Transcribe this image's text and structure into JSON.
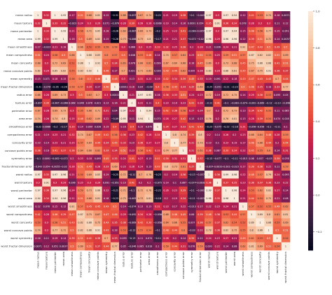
{
  "chart_data": {
    "type": "heatmap",
    "title": "",
    "xlabel": "",
    "ylabel": "",
    "labels": [
      "mean radius",
      "mean texture",
      "mean perimeter",
      "mean area",
      "mean smoothness",
      "mean compactness",
      "mean concavity",
      "mean concave points",
      "mean symmetry",
      "mean fractal dimension",
      "radius error",
      "texture error",
      "perimeter error",
      "area error",
      "smoothness error",
      "compactness error",
      "concavity error",
      "concave points error",
      "symmetry error",
      "fractal dimension error",
      "worst radius",
      "worst texture",
      "worst perimeter",
      "worst area",
      "worst smoothness",
      "worst compactness",
      "worst concavity",
      "worst concave points",
      "worst symmetry",
      "worst fractal dimension"
    ],
    "matrix": [
      [
        1,
        0.32,
        1,
        0.99,
        0.17,
        0.51,
        0.68,
        0.82,
        0.15,
        -0.31,
        0.68,
        -0.097,
        0.67,
        0.74,
        -0.22,
        0.21,
        0.19,
        0.38,
        -0.1,
        -0.043,
        0.97,
        0.3,
        0.97,
        0.94,
        0.12,
        0.41,
        0.53,
        0.74,
        0.16,
        0.0071
      ],
      [
        0.32,
        1,
        0.33,
        0.32,
        -0.023,
        0.24,
        0.3,
        0.29,
        0.071,
        -0.076,
        0.28,
        0.39,
        0.28,
        0.26,
        0.0066,
        0.19,
        0.14,
        0.16,
        0.0091,
        0.054,
        0.35,
        0.91,
        0.36,
        0.34,
        0.078,
        0.28,
        0.3,
        0.3,
        0.11,
        0.12
      ],
      [
        1,
        0.33,
        1,
        0.99,
        0.21,
        0.56,
        0.72,
        0.85,
        0.18,
        -0.26,
        0.69,
        -0.087,
        0.69,
        0.74,
        -0.2,
        0.25,
        0.23,
        0.41,
        -0.082,
        -0.0055,
        0.97,
        0.3,
        0.97,
        0.94,
        0.15,
        0.46,
        0.56,
        0.77,
        0.19,
        0.051
      ],
      [
        0.99,
        0.32,
        0.99,
        1,
        0.18,
        0.5,
        0.69,
        0.82,
        0.15,
        -0.28,
        0.73,
        -0.066,
        0.73,
        0.8,
        -0.17,
        0.21,
        0.21,
        0.37,
        -0.072,
        -0.02,
        0.96,
        0.29,
        0.96,
        0.96,
        0.12,
        0.39,
        0.51,
        0.72,
        0.14,
        0.0037
      ],
      [
        0.17,
        -0.023,
        0.21,
        0.18,
        1,
        0.66,
        0.52,
        0.55,
        0.56,
        0.58,
        0.3,
        0.068,
        0.3,
        0.25,
        0.33,
        0.32,
        0.25,
        0.38,
        0.2,
        0.28,
        0.21,
        0.036,
        0.24,
        0.21,
        0.81,
        0.47,
        0.43,
        0.5,
        0.39,
        0.5
      ],
      [
        0.51,
        0.24,
        0.56,
        0.5,
        0.66,
        1,
        0.88,
        0.83,
        0.6,
        0.57,
        0.5,
        0.046,
        0.55,
        0.46,
        0.14,
        0.74,
        0.57,
        0.64,
        0.23,
        0.51,
        0.54,
        0.25,
        0.59,
        0.51,
        0.57,
        0.87,
        0.82,
        0.82,
        0.51,
        0.69
      ],
      [
        0.68,
        0.3,
        0.72,
        0.69,
        0.52,
        0.88,
        1,
        0.92,
        0.5,
        0.34,
        0.63,
        0.076,
        0.66,
        0.62,
        0.099,
        0.67,
        0.69,
        0.68,
        0.18,
        0.45,
        0.69,
        0.3,
        0.73,
        0.68,
        0.45,
        0.75,
        0.88,
        0.86,
        0.41,
        0.51
      ],
      [
        0.82,
        0.29,
        0.85,
        0.82,
        0.55,
        0.83,
        0.92,
        1,
        0.46,
        0.17,
        0.7,
        0.021,
        0.71,
        0.69,
        0.028,
        0.49,
        0.44,
        0.62,
        0.095,
        0.26,
        0.83,
        0.29,
        0.86,
        0.81,
        0.45,
        0.67,
        0.75,
        0.91,
        0.38,
        0.37
      ],
      [
        0.15,
        0.071,
        0.18,
        0.15,
        0.56,
        0.6,
        0.5,
        0.46,
        1,
        0.48,
        0.3,
        0.13,
        0.31,
        0.22,
        0.19,
        0.42,
        0.34,
        0.39,
        0.45,
        0.33,
        0.19,
        0.091,
        0.22,
        0.18,
        0.43,
        0.47,
        0.43,
        0.43,
        0.7,
        0.44
      ],
      [
        -0.31,
        -0.076,
        -0.26,
        -0.28,
        0.58,
        0.57,
        0.34,
        0.17,
        0.48,
        1,
        0.00011,
        0.16,
        0.04,
        -0.09,
        0.4,
        0.56,
        0.45,
        0.34,
        0.35,
        0.69,
        -0.25,
        -0.051,
        -0.21,
        -0.23,
        0.5,
        0.46,
        0.35,
        0.18,
        0.33,
        0.77
      ],
      [
        0.68,
        0.28,
        0.69,
        0.73,
        0.3,
        0.5,
        0.63,
        0.7,
        0.3,
        0.00011,
        1,
        0.21,
        0.97,
        0.95,
        0.16,
        0.36,
        0.33,
        0.51,
        0.24,
        0.23,
        0.72,
        0.19,
        0.72,
        0.75,
        0.14,
        0.29,
        0.38,
        0.53,
        0.095,
        0.05
      ],
      [
        -0.097,
        0.39,
        -0.087,
        -0.066,
        0.068,
        0.046,
        0.076,
        0.021,
        0.13,
        0.16,
        0.21,
        1,
        0.22,
        0.11,
        0.4,
        0.23,
        0.19,
        0.23,
        0.41,
        0.28,
        -0.11,
        0.41,
        -0.1,
        -0.083,
        -0.074,
        -0.092,
        -0.069,
        -0.12,
        -0.13,
        -0.046
      ],
      [
        0.67,
        0.28,
        0.69,
        0.73,
        0.3,
        0.55,
        0.66,
        0.71,
        0.31,
        0.04,
        0.97,
        0.22,
        1,
        0.94,
        0.15,
        0.42,
        0.36,
        0.56,
        0.27,
        0.24,
        0.7,
        0.2,
        0.72,
        0.73,
        0.13,
        0.34,
        0.42,
        0.55,
        0.11,
        0.085
      ],
      [
        0.74,
        0.26,
        0.74,
        0.8,
        0.25,
        0.46,
        0.62,
        0.69,
        0.22,
        -0.09,
        0.95,
        0.11,
        0.94,
        1,
        0.075,
        0.28,
        0.27,
        0.42,
        0.13,
        0.13,
        0.76,
        0.2,
        0.76,
        0.81,
        0.13,
        0.28,
        0.39,
        0.54,
        0.074,
        0.018
      ],
      [
        -0.22,
        0.0066,
        -0.2,
        -0.17,
        0.33,
        0.14,
        0.099,
        0.028,
        0.19,
        0.4,
        0.16,
        0.4,
        0.15,
        0.075,
        1,
        0.34,
        0.27,
        0.33,
        0.41,
        0.43,
        -0.23,
        -0.075,
        -0.22,
        -0.18,
        0.31,
        -0.056,
        -0.058,
        -0.1,
        -0.11,
        0.1
      ],
      [
        0.21,
        0.19,
        0.25,
        0.21,
        0.32,
        0.74,
        0.67,
        0.49,
        0.42,
        0.56,
        0.36,
        0.23,
        0.42,
        0.28,
        0.34,
        1,
        0.8,
        0.74,
        0.39,
        0.8,
        0.2,
        0.14,
        0.26,
        0.2,
        0.23,
        0.68,
        0.64,
        0.48,
        0.28,
        0.59
      ],
      [
        0.19,
        0.14,
        0.23,
        0.21,
        0.25,
        0.57,
        0.69,
        0.44,
        0.34,
        0.45,
        0.33,
        0.19,
        0.36,
        0.27,
        0.27,
        0.8,
        1,
        0.77,
        0.31,
        0.73,
        0.19,
        0.1,
        0.23,
        0.19,
        0.17,
        0.48,
        0.66,
        0.44,
        0.2,
        0.44
      ],
      [
        0.38,
        0.16,
        0.41,
        0.37,
        0.38,
        0.64,
        0.68,
        0.62,
        0.39,
        0.34,
        0.51,
        0.23,
        0.56,
        0.42,
        0.33,
        0.74,
        0.77,
        1,
        0.31,
        0.61,
        0.36,
        0.087,
        0.39,
        0.34,
        0.22,
        0.45,
        0.55,
        0.6,
        0.14,
        0.31
      ],
      [
        -0.1,
        0.0091,
        -0.082,
        -0.072,
        0.2,
        0.23,
        0.18,
        0.095,
        0.45,
        0.35,
        0.24,
        0.41,
        0.27,
        0.13,
        0.41,
        0.39,
        0.31,
        0.31,
        1,
        0.37,
        -0.13,
        -0.077,
        -0.1,
        -0.11,
        -0.013,
        0.06,
        0.037,
        -0.03,
        0.39,
        0.078
      ],
      [
        -0.043,
        0.054,
        -0.0055,
        -0.02,
        0.28,
        0.51,
        0.45,
        0.26,
        0.33,
        0.69,
        0.23,
        0.28,
        0.24,
        0.13,
        0.43,
        0.8,
        0.73,
        0.61,
        0.37,
        1,
        -0.037,
        -0.0032,
        -0.001,
        -0.023,
        0.17,
        0.39,
        0.38,
        0.22,
        0.11,
        0.59
      ],
      [
        0.97,
        0.35,
        0.97,
        0.96,
        0.21,
        0.54,
        0.69,
        0.83,
        0.19,
        -0.25,
        0.72,
        -0.11,
        0.7,
        0.76,
        -0.23,
        0.2,
        0.19,
        0.36,
        -0.13,
        -0.037,
        1,
        0.36,
        0.99,
        0.98,
        0.22,
        0.48,
        0.57,
        0.79,
        0.24,
        0.093
      ],
      [
        0.3,
        0.91,
        0.3,
        0.29,
        0.036,
        0.25,
        0.3,
        0.29,
        0.091,
        -0.051,
        0.19,
        0.41,
        0.2,
        0.2,
        -0.075,
        0.14,
        0.1,
        0.087,
        -0.077,
        -0.0032,
        0.36,
        1,
        0.37,
        0.35,
        0.23,
        0.36,
        0.37,
        0.36,
        0.23,
        0.22
      ],
      [
        0.97,
        0.36,
        0.97,
        0.96,
        0.24,
        0.59,
        0.73,
        0.86,
        0.22,
        -0.21,
        0.72,
        -0.1,
        0.72,
        0.76,
        -0.22,
        0.26,
        0.23,
        0.39,
        -0.1,
        -0.001,
        0.99,
        0.37,
        1,
        0.98,
        0.24,
        0.53,
        0.62,
        0.82,
        0.27,
        0.14
      ],
      [
        0.94,
        0.34,
        0.94,
        0.96,
        0.21,
        0.51,
        0.68,
        0.81,
        0.18,
        -0.23,
        0.75,
        -0.083,
        0.73,
        0.81,
        -0.18,
        0.2,
        0.19,
        0.34,
        -0.11,
        -0.023,
        0.98,
        0.35,
        0.98,
        1,
        0.21,
        0.44,
        0.54,
        0.75,
        0.21,
        0.08
      ],
      [
        0.12,
        0.078,
        0.15,
        0.12,
        0.81,
        0.57,
        0.45,
        0.45,
        0.43,
        0.5,
        0.14,
        -0.074,
        0.13,
        0.13,
        0.31,
        0.23,
        0.17,
        0.22,
        -0.013,
        0.17,
        0.22,
        0.23,
        0.24,
        0.21,
        1,
        0.57,
        0.52,
        0.55,
        0.49,
        0.62
      ],
      [
        0.41,
        0.28,
        0.46,
        0.39,
        0.47,
        0.87,
        0.75,
        0.67,
        0.47,
        0.46,
        0.29,
        -0.092,
        0.34,
        0.28,
        -0.056,
        0.68,
        0.48,
        0.45,
        0.06,
        0.39,
        0.48,
        0.36,
        0.53,
        0.44,
        0.57,
        1,
        0.89,
        0.8,
        0.61,
        0.81
      ],
      [
        0.53,
        0.3,
        0.56,
        0.51,
        0.43,
        0.82,
        0.88,
        0.75,
        0.43,
        0.35,
        0.38,
        -0.069,
        0.42,
        0.39,
        -0.058,
        0.64,
        0.66,
        0.55,
        0.037,
        0.38,
        0.57,
        0.37,
        0.62,
        0.54,
        0.52,
        0.89,
        1,
        0.86,
        0.53,
        0.69
      ],
      [
        0.74,
        0.3,
        0.77,
        0.72,
        0.5,
        0.82,
        0.86,
        0.91,
        0.43,
        0.18,
        0.53,
        -0.12,
        0.55,
        0.54,
        -0.1,
        0.48,
        0.44,
        0.6,
        -0.03,
        0.22,
        0.79,
        0.36,
        0.82,
        0.75,
        0.55,
        0.8,
        0.86,
        1,
        0.5,
        0.51
      ],
      [
        0.16,
        0.11,
        0.19,
        0.14,
        0.39,
        0.51,
        0.41,
        0.38,
        0.7,
        0.33,
        0.095,
        -0.13,
        0.11,
        0.074,
        -0.11,
        0.28,
        0.2,
        0.14,
        0.39,
        0.11,
        0.24,
        0.23,
        0.27,
        0.21,
        0.49,
        0.61,
        0.53,
        0.5,
        1,
        0.54
      ],
      [
        0.0071,
        0.12,
        0.051,
        0.0037,
        0.5,
        0.69,
        0.51,
        0.37,
        0.44,
        0.77,
        0.05,
        -0.046,
        0.085,
        0.018,
        0.1,
        0.59,
        0.44,
        0.31,
        0.078,
        0.59,
        0.093,
        0.22,
        0.14,
        0.08,
        0.62,
        0.81,
        0.69,
        0.51,
        0.54,
        1
      ]
    ],
    "colorbar": {
      "min": -0.3,
      "max": 1.0,
      "ticks": [
        "1.0",
        "0.8",
        "0.6",
        "0.4",
        "0.2",
        "0.0",
        "−0.2"
      ],
      "tick_values": [
        1.0,
        0.8,
        0.6,
        0.4,
        0.2,
        0.0,
        -0.2
      ]
    },
    "colormap": "rocket",
    "colormap_stops": [
      "#03051a",
      "#2e1e3b",
      "#5f1f4e",
      "#8c1c55",
      "#c51e4b",
      "#e7493a",
      "#f37651",
      "#f6a47c",
      "#f8cfb1",
      "#faebdd"
    ],
    "annotations": true,
    "legend": "colorbar-right",
    "grid": false
  }
}
